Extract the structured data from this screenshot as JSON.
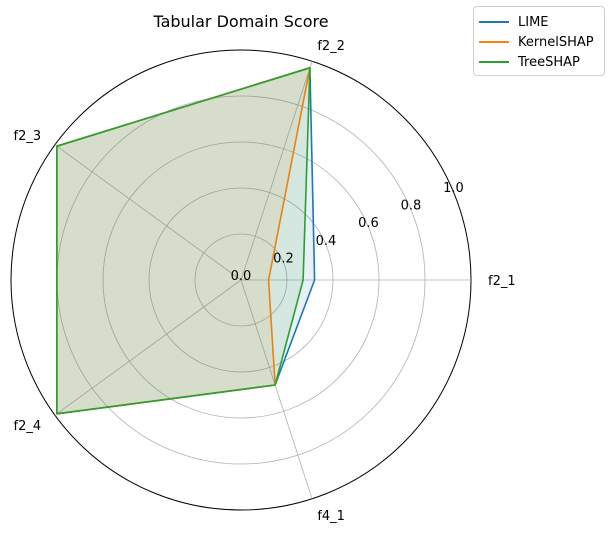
{
  "chart_data": {
    "type": "radar",
    "title": "Tabular Domain Score",
    "categories": [
      "f2_1",
      "f2_2",
      "f2_3",
      "f2_4",
      "f4_1"
    ],
    "radial_ticks": [
      "0.0",
      "0.2",
      "0.4",
      "0.6",
      "0.8",
      "1.0"
    ],
    "rlim": [
      0,
      1.0
    ],
    "grid": true,
    "legend_position": "top-right, outside plot",
    "fill": true,
    "series": [
      {
        "name": "LIME",
        "color": "#1f77b4",
        "values": [
          0.32,
          0.97,
          0.99,
          0.99,
          0.48
        ]
      },
      {
        "name": "KernelSHAP",
        "color": "#ff7f0e",
        "values": [
          0.12,
          0.97,
          0.99,
          0.99,
          0.48
        ]
      },
      {
        "name": "TreeSHAP",
        "color": "#2ca02c",
        "values": [
          0.27,
          0.97,
          0.99,
          0.99,
          0.48
        ]
      }
    ]
  }
}
